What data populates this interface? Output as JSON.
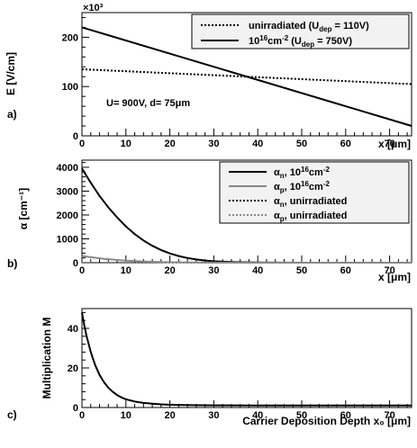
{
  "chart_data": [
    {
      "panel_label": "a)",
      "type": "line",
      "xlabel": "x [μm]",
      "ylabel": "E [V/cm]",
      "ylabel_exponent": "×10³",
      "xlim": [
        0,
        75
      ],
      "ylim": [
        0,
        250
      ],
      "xticks": [
        0,
        10,
        20,
        30,
        40,
        50,
        60,
        70
      ],
      "yticks": [
        0,
        100,
        200
      ],
      "annotation": "U= 900V, d= 75μm",
      "legend_position": "top-right",
      "series": [
        {
          "name": "unirradiated (U_dep = 110V)",
          "style": "dotted",
          "x": [
            0,
            75
          ],
          "y": [
            135,
            105
          ]
        },
        {
          "name": "10^16 cm^-2 (U_dep = 750V)",
          "style": "solid",
          "x": [
            0,
            75
          ],
          "y": [
            220,
            20
          ]
        }
      ]
    },
    {
      "panel_label": "b)",
      "type": "line",
      "xlabel": "x [μm]",
      "ylabel": "α [cm⁻¹]",
      "xlim": [
        0,
        75
      ],
      "ylim": [
        0,
        4300
      ],
      "xticks": [
        0,
        10,
        20,
        30,
        40,
        50,
        60,
        70
      ],
      "yticks": [
        0,
        1000,
        2000,
        3000,
        4000
      ],
      "legend_position": "top-right",
      "series": [
        {
          "name": "αn, 10^16 cm^-2",
          "style": "solid",
          "color": "#000000",
          "x": [
            0,
            2,
            4,
            6,
            8,
            10,
            12,
            14,
            16,
            18,
            20,
            22,
            24,
            26,
            28,
            30,
            32,
            35,
            40,
            45,
            50,
            60,
            75
          ],
          "y": [
            3950,
            3350,
            2800,
            2320,
            1900,
            1520,
            1200,
            930,
            710,
            530,
            390,
            280,
            195,
            135,
            90,
            60,
            40,
            22,
            8,
            3,
            1,
            0,
            0
          ]
        },
        {
          "name": "αp, 10^16 cm^-2",
          "style": "solid",
          "color": "#888888",
          "x": [
            0,
            5,
            10,
            15,
            20,
            25,
            30,
            40,
            75
          ],
          "y": [
            280,
            160,
            85,
            42,
            20,
            9,
            4,
            1,
            0
          ]
        },
        {
          "name": "αn, unirradiated",
          "style": "dotted",
          "color": "#000000",
          "x": [
            0,
            75
          ],
          "y": [
            0,
            0
          ]
        },
        {
          "name": "αp, unirradiated",
          "style": "dotted",
          "color": "#888888",
          "x": [
            0,
            75
          ],
          "y": [
            0,
            0
          ]
        }
      ]
    },
    {
      "panel_label": "c)",
      "type": "line",
      "xlabel": "Carrier Deposition Depth x₀ [μm]",
      "ylabel": "Multiplication M",
      "xlim": [
        0,
        75
      ],
      "ylim": [
        0,
        50
      ],
      "xticks": [
        0,
        10,
        20,
        30,
        40,
        50,
        60,
        70
      ],
      "yticks": [
        0,
        20,
        40
      ],
      "series": [
        {
          "name": "",
          "style": "solid",
          "color": "#000000",
          "x": [
            0,
            0.5,
            1,
            2,
            3,
            4,
            5,
            6,
            7,
            8,
            9,
            10,
            12,
            14,
            16,
            18,
            20,
            22,
            25,
            30,
            40,
            50,
            60,
            75
          ],
          "y": [
            48,
            42,
            36.5,
            28,
            21.5,
            16.5,
            12.8,
            10,
            7.9,
            6.3,
            5.1,
            4.2,
            3.0,
            2.3,
            1.9,
            1.6,
            1.4,
            1.3,
            1.2,
            1.1,
            1.05,
            1.0,
            1.0,
            1.0
          ]
        }
      ]
    }
  ]
}
